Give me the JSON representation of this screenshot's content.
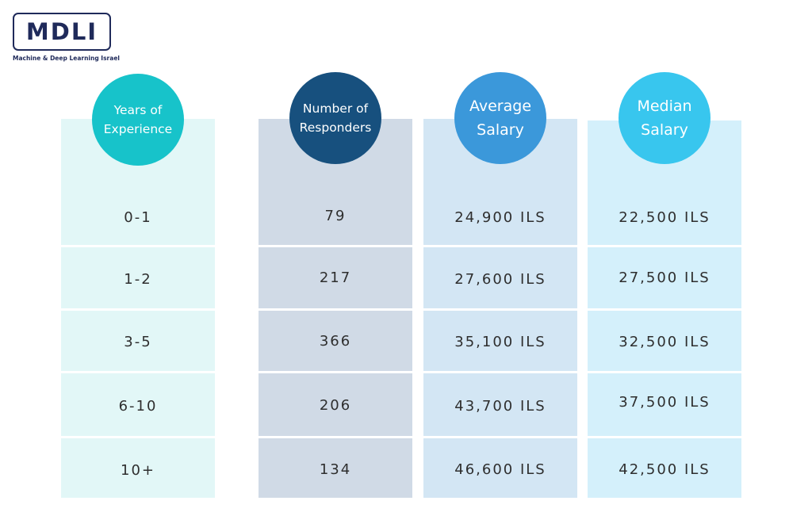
{
  "logo": {
    "text": "MDLI",
    "subtitle": "Machine & Deep Learning Israel"
  },
  "colors": {
    "logo": "#1f2a5a",
    "col1_bg": "#e2f7f7",
    "col2_bg": "#d0dae6",
    "col3_bg": "#d3e6f4",
    "col4_bg": "#d4f0fb",
    "col1_circle": "#17c3ca",
    "col2_circle": "#17507e",
    "col3_circle": "#3b98da",
    "col4_circle": "#38c6ee"
  },
  "chart_data": {
    "type": "table",
    "columns": [
      {
        "label_line1": "Years of",
        "label_line2": "Experience"
      },
      {
        "label_line1": "Number of",
        "label_line2": "Responders"
      },
      {
        "label_line1": "Average",
        "label_line2": "Salary"
      },
      {
        "label_line1": "Median",
        "label_line2": "Salary"
      }
    ],
    "rows": [
      {
        "years": "0-1",
        "responders": "79",
        "average": "24,900 ILS",
        "median": "22,500 ILS"
      },
      {
        "years": "1-2",
        "responders": "217",
        "average": "27,600 ILS",
        "median": "27,500 ILS"
      },
      {
        "years": "3-5",
        "responders": "366",
        "average": "35,100 ILS",
        "median": "32,500 ILS"
      },
      {
        "years": "6-10",
        "responders": "206",
        "average": "43,700 ILS",
        "median": "37,500 ILS"
      },
      {
        "years": "10+",
        "responders": "134",
        "average": "46,600 ILS",
        "median": "42,500 ILS"
      }
    ]
  }
}
